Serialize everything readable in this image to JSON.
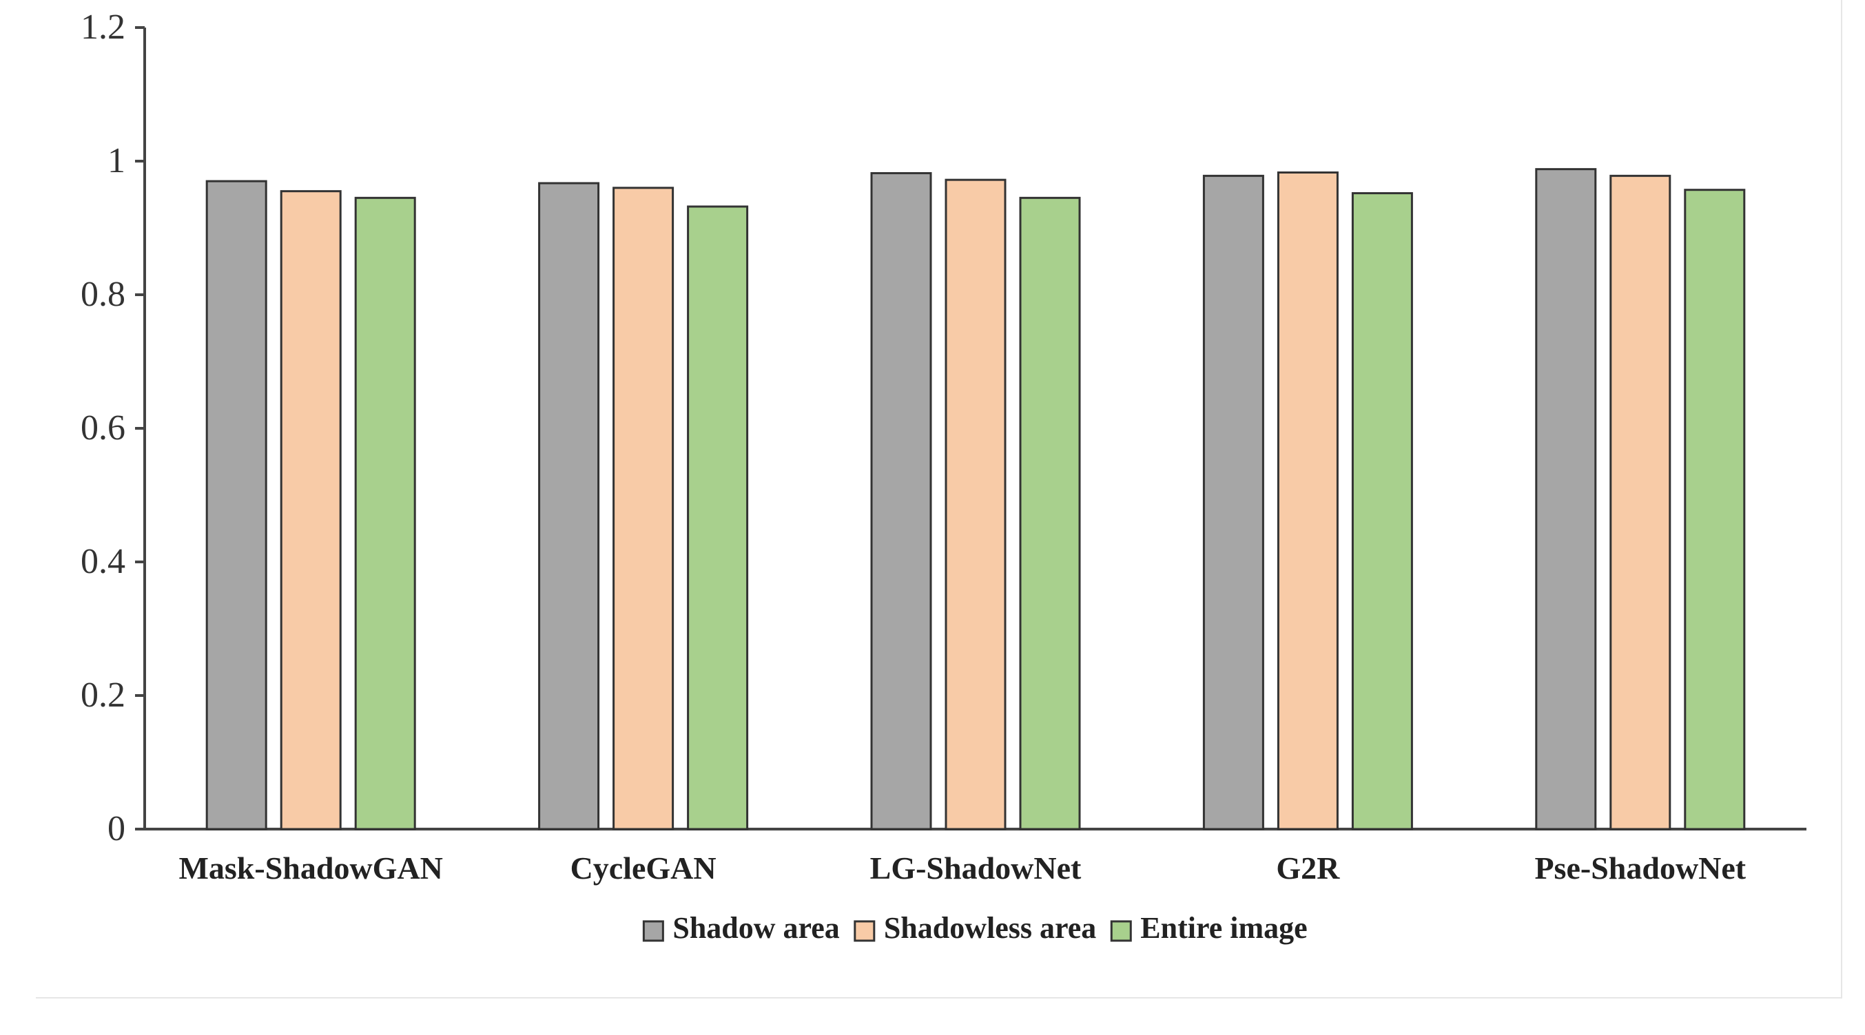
{
  "chart_data": {
    "type": "bar",
    "title": "",
    "xlabel": "",
    "ylabel": "",
    "categories": [
      "Mask-ShadowGAN",
      "CycleGAN",
      "LG-ShadowNet",
      "G2R",
      "Pse-ShadowNet"
    ],
    "series": [
      {
        "name": "Shadow area",
        "color": "#a6a6a6",
        "values": [
          0.97,
          0.967,
          0.982,
          0.978,
          0.988
        ]
      },
      {
        "name": "Shadowless area",
        "color": "#f8cba7",
        "values": [
          0.955,
          0.96,
          0.972,
          0.983,
          0.978
        ]
      },
      {
        "name": "Entire image",
        "color": "#a8d08d",
        "values": [
          0.945,
          0.932,
          0.945,
          0.952,
          0.957
        ]
      }
    ],
    "ylim": [
      0,
      1.2
    ],
    "yticks": [
      0,
      0.2,
      0.4,
      0.6,
      0.8,
      1,
      1.2
    ],
    "ytick_labels": [
      "0",
      "0.2",
      "0.4",
      "0.6",
      "0.8",
      "1",
      "1.2"
    ],
    "grid": false,
    "legend": "bottom-center",
    "bar_edge_color": "#333333",
    "axis_color": "#444444"
  }
}
